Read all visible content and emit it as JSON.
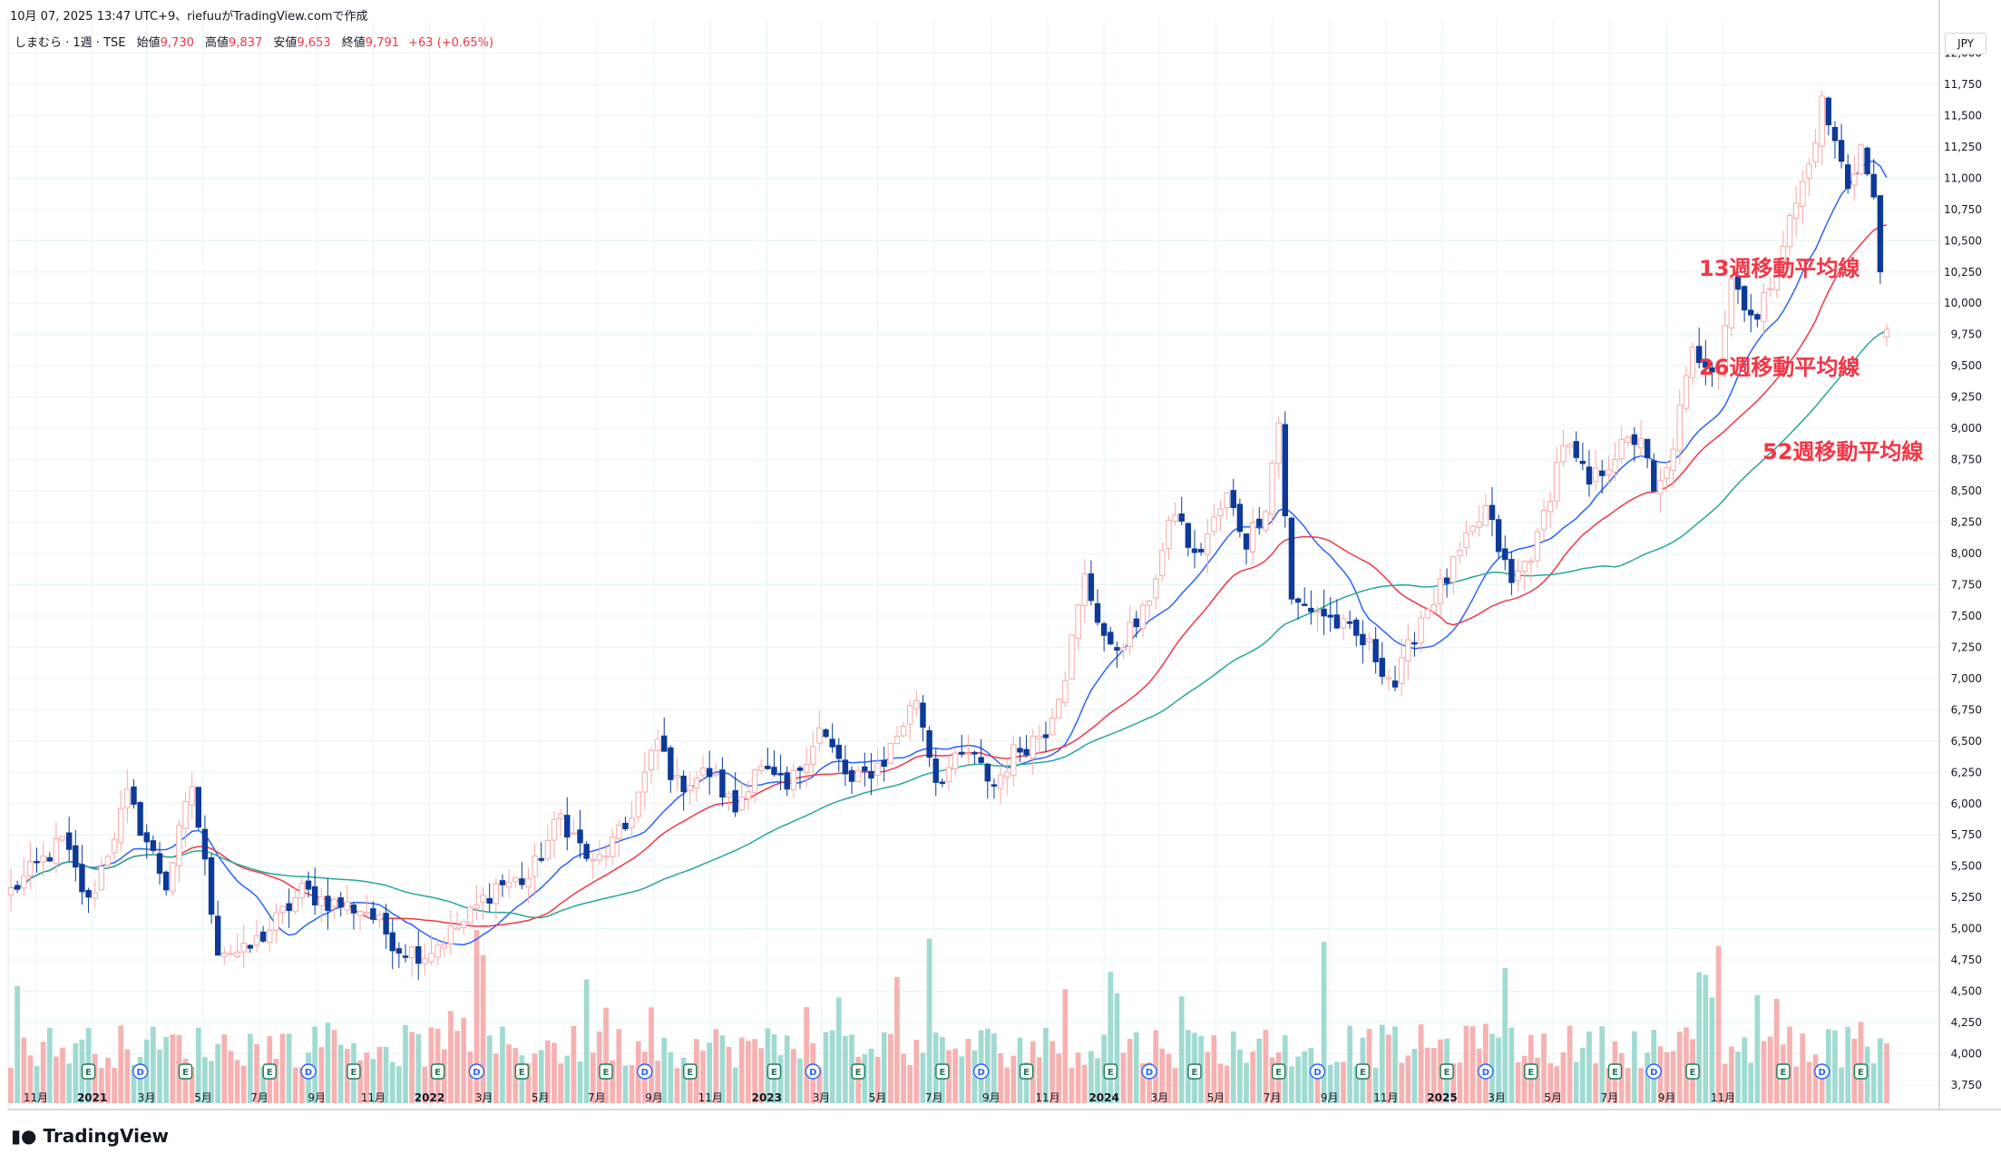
{
  "header": {
    "created": "10月 07, 2025 13:47 UTC+9、riefuuがTradingView.comで作成"
  },
  "legend": {
    "symbol": "しまむら · 1週 · TSE",
    "open_label": "始値",
    "open": "9,730",
    "high_label": "高値",
    "high": "9,837",
    "low_label": "安値",
    "low": "9,653",
    "close_label": "終値",
    "close": "9,791",
    "change": "+63 (+0.65%)"
  },
  "currency": "JPY",
  "brand": "TradingView",
  "annotations": {
    "ma13": "13週移動平均線",
    "ma26": "26週移動平均線",
    "ma52": "52週移動平均線"
  },
  "colors": {
    "up": "#f7a9a7",
    "down": "#0d3a99",
    "up_volume": "#f5a3a3",
    "down_volume": "#8fd3c9",
    "ma13": "#2962ff",
    "ma26": "#f23645",
    "ma52": "#26a69a",
    "annotation": "#f23645",
    "grid": "#e6f4f6"
  },
  "chart_data": {
    "type": "candlestick",
    "timeframe": "1週",
    "y_ticks": [
      "3,750",
      "4,000",
      "4,250",
      "4,500",
      "4,750",
      "5,000",
      "5,250",
      "5,500",
      "5,750",
      "6,000",
      "6,250",
      "6,500",
      "6,750",
      "7,000",
      "7,250",
      "7,500",
      "7,750",
      "8,000",
      "8,250",
      "8,500",
      "8,750",
      "9,000",
      "9,250",
      "9,500",
      "9,750",
      "10,000",
      "10,250",
      "10,500",
      "10,750",
      "11,000",
      "11,250",
      "11,500",
      "11,750",
      "12,000"
    ],
    "x_ticks": [
      {
        "label": "11月",
        "x": "2020-11-01"
      },
      {
        "label": "2021",
        "x": "2021-01-01",
        "bold": true
      },
      {
        "label": "3月",
        "x": "2021-03-01"
      },
      {
        "label": "5月",
        "x": "2021-05-01"
      },
      {
        "label": "7月",
        "x": "2021-07-01"
      },
      {
        "label": "9月",
        "x": "2021-09-01"
      },
      {
        "label": "11月",
        "x": "2021-11-01"
      },
      {
        "label": "2022",
        "x": "2022-01-01",
        "bold": true
      },
      {
        "label": "3月",
        "x": "2022-03-01"
      },
      {
        "label": "5月",
        "x": "2022-05-01"
      },
      {
        "label": "7月",
        "x": "2022-07-01"
      },
      {
        "label": "9月",
        "x": "2022-09-01"
      },
      {
        "label": "11月",
        "x": "2022-11-01"
      },
      {
        "label": "2023",
        "x": "2023-01-01",
        "bold": true
      },
      {
        "label": "3月",
        "x": "2023-03-01"
      },
      {
        "label": "5月",
        "x": "2023-05-01"
      },
      {
        "label": "7月",
        "x": "2023-07-01"
      },
      {
        "label": "9月",
        "x": "2023-09-01"
      },
      {
        "label": "11月",
        "x": "2023-11-01"
      },
      {
        "label": "2024",
        "x": "2024-01-01",
        "bold": true
      },
      {
        "label": "3月",
        "x": "2024-03-01"
      },
      {
        "label": "5月",
        "x": "2024-05-01"
      },
      {
        "label": "7月",
        "x": "2024-07-01"
      },
      {
        "label": "9月",
        "x": "2024-09-01"
      },
      {
        "label": "11月",
        "x": "2024-11-01"
      },
      {
        "label": "2025",
        "x": "2025-01-01",
        "bold": true
      },
      {
        "label": "3月",
        "x": "2025-03-01"
      },
      {
        "label": "5月",
        "x": "2025-05-01"
      },
      {
        "label": "7月",
        "x": "2025-07-01"
      },
      {
        "label": "9月",
        "x": "2025-09-01"
      },
      {
        "label": "11月",
        "x": "2025-11-01"
      }
    ],
    "start_date": "2020-10-05",
    "price_path": [
      [
        0,
        5300
      ],
      [
        8,
        5700
      ],
      [
        12,
        5200
      ],
      [
        18,
        6050
      ],
      [
        24,
        5350
      ],
      [
        28,
        6150
      ],
      [
        32,
        4850
      ],
      [
        36,
        4800
      ],
      [
        40,
        5000
      ],
      [
        45,
        5300
      ],
      [
        50,
        5200
      ],
      [
        55,
        5150
      ],
      [
        60,
        4850
      ],
      [
        64,
        4800
      ],
      [
        70,
        5050
      ],
      [
        75,
        5350
      ],
      [
        80,
        5400
      ],
      [
        85,
        5900
      ],
      [
        90,
        5500
      ],
      [
        95,
        5800
      ],
      [
        100,
        6500
      ],
      [
        103,
        6150
      ],
      [
        108,
        6250
      ],
      [
        112,
        5950
      ],
      [
        115,
        6300
      ],
      [
        120,
        6100
      ],
      [
        125,
        6600
      ],
      [
        130,
        6150
      ],
      [
        135,
        6350
      ],
      [
        140,
        6850
      ],
      [
        143,
        6200
      ],
      [
        148,
        6400
      ],
      [
        152,
        6150
      ],
      [
        155,
        6400
      ],
      [
        160,
        6600
      ],
      [
        163,
        7050
      ],
      [
        166,
        7800
      ],
      [
        170,
        7200
      ],
      [
        175,
        7500
      ],
      [
        180,
        8350
      ],
      [
        183,
        7950
      ],
      [
        188,
        8450
      ],
      [
        191,
        8100
      ],
      [
        194,
        8400
      ],
      [
        196,
        9050
      ],
      [
        198,
        7600
      ],
      [
        202,
        7550
      ],
      [
        206,
        7400
      ],
      [
        210,
        7250
      ],
      [
        214,
        6950
      ],
      [
        218,
        7500
      ],
      [
        222,
        7800
      ],
      [
        228,
        8350
      ],
      [
        232,
        7750
      ],
      [
        236,
        8100
      ],
      [
        240,
        8900
      ],
      [
        244,
        8550
      ],
      [
        248,
        8800
      ],
      [
        252,
        8950
      ],
      [
        254,
        8450
      ],
      [
        256,
        8650
      ],
      [
        260,
        9600
      ],
      [
        264,
        9500
      ],
      [
        266,
        10200
      ],
      [
        270,
        9850
      ],
      [
        274,
        10500
      ],
      [
        278,
        11100
      ],
      [
        280,
        11600
      ],
      [
        284,
        10950
      ],
      [
        286,
        11250
      ],
      [
        288,
        10800
      ],
      [
        290,
        9730
      ]
    ],
    "volume_range": [
      0,
      1500000
    ]
  }
}
